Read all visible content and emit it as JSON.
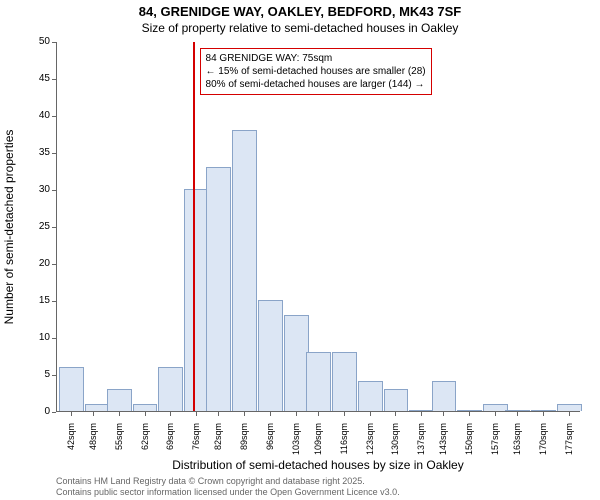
{
  "title_main": "84, GRENIDGE WAY, OAKLEY, BEDFORD, MK43 7SF",
  "title_sub": "Size of property relative to semi-detached houses in Oakley",
  "ylabel": "Number of semi-detached properties",
  "xlabel": "Distribution of semi-detached houses by size in Oakley",
  "footer1": "Contains HM Land Registry data © Crown copyright and database right 2025.",
  "footer2": "Contains public sector information licensed under the Open Government Licence v3.0.",
  "chart": {
    "type": "histogram",
    "background_color": "#ffffff",
    "bar_fill": "#dce6f4",
    "bar_stroke": "#8aa4c8",
    "axis_color": "#666666",
    "marker_color": "#d40000",
    "annot_border": "#d40000",
    "ylim": [
      0,
      50
    ],
    "yticks": [
      0,
      5,
      10,
      15,
      20,
      25,
      30,
      35,
      40,
      45,
      50
    ],
    "xtick_labels": [
      "42sqm",
      "48sqm",
      "55sqm",
      "62sqm",
      "69sqm",
      "76sqm",
      "82sqm",
      "89sqm",
      "96sqm",
      "103sqm",
      "109sqm",
      "116sqm",
      "123sqm",
      "130sqm",
      "137sqm",
      "143sqm",
      "150sqm",
      "157sqm",
      "163sqm",
      "170sqm",
      "177sqm"
    ],
    "x_min": 38,
    "x_max": 180,
    "bar_bin_width": 7,
    "bars": [
      {
        "x": 42,
        "v": 6
      },
      {
        "x": 49,
        "v": 1
      },
      {
        "x": 55,
        "v": 3
      },
      {
        "x": 62,
        "v": 1
      },
      {
        "x": 69,
        "v": 6
      },
      {
        "x": 76,
        "v": 30
      },
      {
        "x": 82,
        "v": 33
      },
      {
        "x": 89,
        "v": 38
      },
      {
        "x": 96,
        "v": 15
      },
      {
        "x": 103,
        "v": 13
      },
      {
        "x": 109,
        "v": 8
      },
      {
        "x": 116,
        "v": 8
      },
      {
        "x": 123,
        "v": 4
      },
      {
        "x": 130,
        "v": 3
      },
      {
        "x": 137,
        "v": 0
      },
      {
        "x": 143,
        "v": 4
      },
      {
        "x": 150,
        "v": 0
      },
      {
        "x": 157,
        "v": 1
      },
      {
        "x": 163,
        "v": 0
      },
      {
        "x": 170,
        "v": 0
      },
      {
        "x": 177,
        "v": 1
      }
    ],
    "marker_x": 75,
    "annot_lines": [
      "84 GRENIDGE WAY: 75sqm",
      "← 15% of semi-detached houses are smaller (28)",
      "80% of semi-detached houses are larger (144) →"
    ],
    "title_fontsize": 13,
    "subtitle_fontsize": 12,
    "label_fontsize": 12,
    "tick_fontsize": 10,
    "xtick_fontsize": 9,
    "annot_fontsize": 10,
    "footer_fontsize": 9
  }
}
